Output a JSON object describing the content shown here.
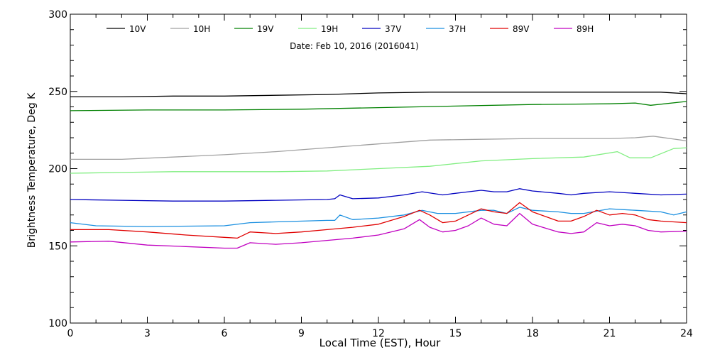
{
  "chart_data": {
    "type": "line",
    "title": "",
    "subtitle": "Date: Feb 10, 2016 (2016041)",
    "xlabel": "Local Time (EST), Hour",
    "ylabel": "Brightness Temperature, Deg K",
    "xlim": [
      0,
      24
    ],
    "ylim": [
      100,
      300
    ],
    "xticks": [
      0,
      3,
      6,
      9,
      12,
      15,
      18,
      21,
      24
    ],
    "yticks": [
      100,
      150,
      200,
      250,
      300
    ],
    "grid": false,
    "legend_position": "top",
    "series": [
      {
        "name": "10V",
        "color": "#000000",
        "x": [
          0,
          2,
          4,
          6,
          8,
          10,
          12,
          14,
          16,
          18,
          20,
          22,
          23,
          24
        ],
        "y": [
          246.5,
          246.5,
          247,
          247,
          247.5,
          248,
          249,
          249.5,
          249.5,
          249.5,
          249.5,
          249.5,
          249.5,
          248.5
        ]
      },
      {
        "name": "10H",
        "color": "#a0a0a0",
        "x": [
          0,
          2,
          4,
          6,
          8,
          10,
          12,
          14,
          16,
          18,
          20,
          21,
          22,
          22.7,
          24
        ],
        "y": [
          206,
          206,
          207.5,
          209,
          211,
          213.5,
          216,
          218.5,
          219,
          219.5,
          219.5,
          219.5,
          220,
          221,
          218
        ]
      },
      {
        "name": "19V",
        "color": "#008000",
        "x": [
          0,
          3,
          6,
          9,
          12,
          15,
          18,
          21,
          22,
          22.6,
          24
        ],
        "y": [
          237.5,
          238,
          238,
          238.5,
          239.5,
          240.5,
          241.5,
          242,
          242.5,
          241,
          243.5
        ]
      },
      {
        "name": "19H",
        "color": "#80ee80",
        "x": [
          0,
          2,
          4,
          6,
          8,
          10,
          12,
          14,
          16,
          18,
          20,
          21.3,
          21.8,
          22.6,
          23.5,
          24
        ],
        "y": [
          197,
          197.5,
          198,
          198,
          198,
          198.5,
          200,
          201.5,
          205,
          206.5,
          207.5,
          211,
          207,
          207,
          213,
          213.5
        ]
      },
      {
        "name": "37V",
        "color": "#0000c0",
        "x": [
          0,
          2,
          4,
          6,
          8,
          10,
          10.3,
          10.5,
          11,
          12,
          13,
          13.7,
          14.5,
          15.5,
          16,
          16.5,
          17,
          17.5,
          18,
          19,
          19.5,
          20,
          21,
          22,
          23,
          24
        ],
        "y": [
          180,
          179.5,
          179,
          179,
          179.5,
          180,
          180.5,
          183,
          180.5,
          181,
          183,
          185,
          183,
          185,
          186,
          185,
          185,
          187,
          185.5,
          184,
          183,
          184,
          185,
          184,
          183,
          183.5
        ]
      },
      {
        "name": "37H",
        "color": "#1a8fe0",
        "x": [
          0,
          1,
          3,
          6,
          7,
          8,
          10,
          10.3,
          10.5,
          11,
          12,
          13,
          13.7,
          14.3,
          15,
          16,
          16.5,
          17,
          17.5,
          18,
          19,
          19.5,
          20,
          21,
          22,
          23,
          23.5,
          24
        ],
        "y": [
          165,
          163,
          162.5,
          163,
          165,
          165.5,
          166.5,
          166.5,
          170,
          167,
          168,
          170,
          173,
          171,
          171,
          173,
          173,
          171,
          175,
          173,
          172,
          171,
          171,
          174,
          173,
          172,
          170,
          172
        ]
      },
      {
        "name": "89V",
        "color": "#e00000",
        "x": [
          0,
          1.5,
          3,
          4.5,
          6,
          6.5,
          7,
          8,
          9,
          10,
          11,
          12,
          13,
          13.6,
          14,
          14.5,
          15,
          15.5,
          16,
          16.5,
          17,
          17.5,
          18,
          19,
          19.5,
          20,
          20.5,
          21,
          21.5,
          22,
          22.5,
          23,
          24
        ],
        "y": [
          160.5,
          160.5,
          159,
          157,
          155.5,
          155,
          159,
          158,
          159,
          160.5,
          162,
          164,
          169,
          173,
          170,
          165,
          166,
          170,
          174,
          172,
          171,
          178,
          172,
          166,
          166,
          169,
          173,
          170,
          171,
          170,
          167,
          166,
          165
        ]
      },
      {
        "name": "89H",
        "color": "#c000c0",
        "x": [
          0,
          1.5,
          3,
          4.5,
          6,
          6.5,
          7,
          8,
          9,
          10,
          11,
          12,
          13,
          13.6,
          14,
          14.5,
          15,
          15.5,
          16,
          16.5,
          17,
          17.5,
          18,
          19,
          19.5,
          20,
          20.5,
          21,
          21.5,
          22,
          22.5,
          23,
          24
        ],
        "y": [
          152.5,
          153,
          150.5,
          149.5,
          148.5,
          148.5,
          152,
          151,
          152,
          153.5,
          155,
          157,
          161,
          167,
          162,
          159,
          160,
          163,
          168,
          164,
          163,
          171,
          164,
          159,
          158,
          159,
          165,
          163,
          164,
          163,
          160,
          159,
          159.5
        ]
      }
    ]
  }
}
